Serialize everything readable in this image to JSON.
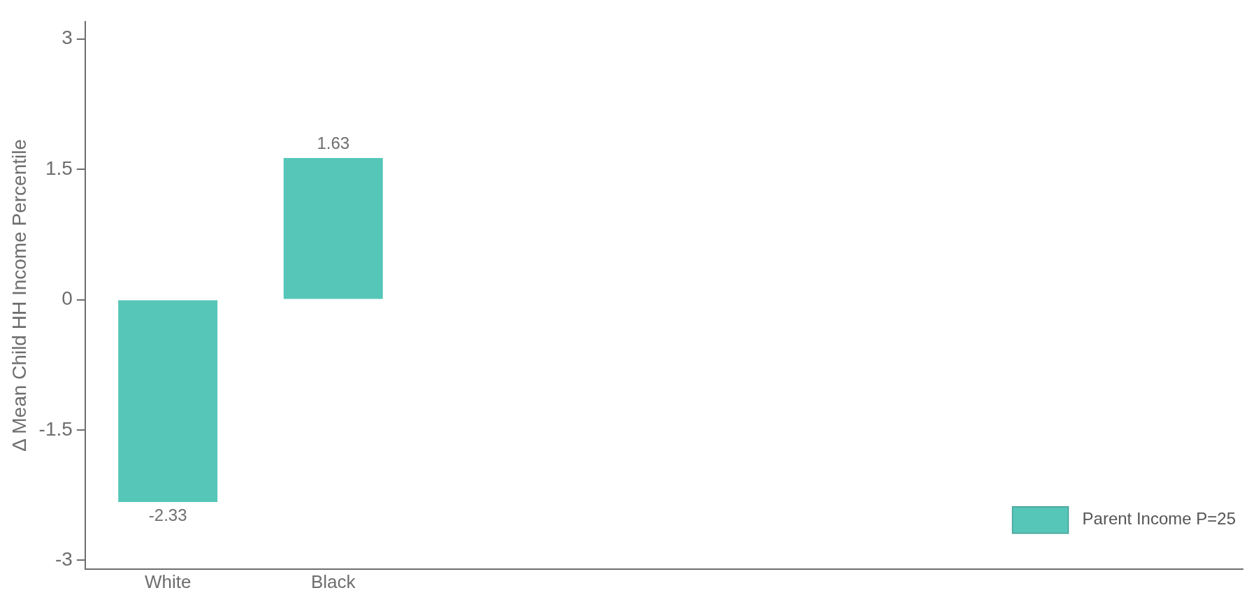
{
  "chart_data": {
    "type": "bar",
    "ylabel": "Δ Mean Child HH Income Percentile",
    "categories": [
      "White",
      "Black",
      null,
      null,
      null,
      null,
      null
    ],
    "series": [
      {
        "name": "Parent Income P=25",
        "color": "#55c6b8",
        "values": [
          -2.33,
          1.63,
          null,
          null,
          null,
          null,
          null
        ]
      }
    ],
    "ylim": [
      -3.1,
      3.2
    ],
    "yticks": [
      3,
      1.5,
      0,
      -1.5,
      -3
    ],
    "data_labels": true,
    "legend": "bottom right",
    "grid": false
  }
}
